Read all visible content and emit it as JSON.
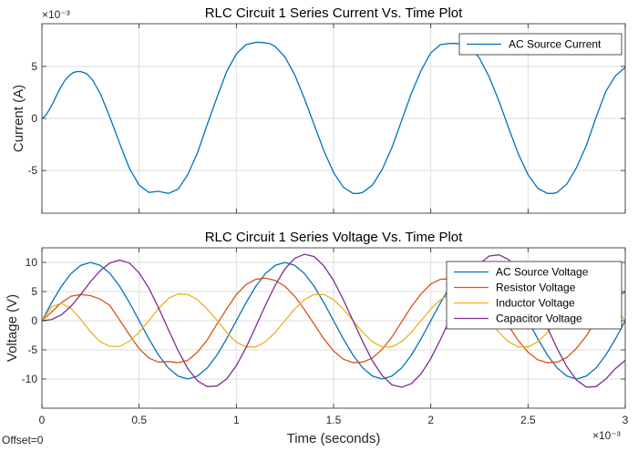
{
  "figure": {
    "offset_label": "Offset=0"
  },
  "chart_data": [
    {
      "type": "line",
      "title": "RLC Circuit 1 Series Current Vs. Time Plot",
      "xlabel": "",
      "ylabel": "Current (A)",
      "exponent_label": "×10⁻³",
      "xlim": [
        0,
        0.003
      ],
      "ylim": [
        -0.0091,
        0.0091
      ],
      "yticks": [
        -0.005,
        0,
        0.005
      ],
      "ytick_labels": [
        "-5",
        "0",
        "5"
      ],
      "xticks": [
        0,
        0.0005,
        0.001,
        0.0015,
        0.002,
        0.0025,
        0.003
      ],
      "grid": true,
      "legend": "top-right",
      "series": [
        {
          "name": "AC Source Current",
          "color": "#0072BD",
          "x": [
            0,
            2e-05,
            4e-05,
            6e-05,
            8e-05,
            0.0001,
            0.00012,
            0.00014,
            0.00016,
            0.00018,
            0.0002,
            0.00023,
            0.00026,
            0.0003,
            0.00035,
            0.0004,
            0.00045,
            0.0005,
            0.00055,
            0.0006,
            0.00065,
            0.0007,
            0.00075,
            0.0008,
            0.00085,
            0.0009,
            0.00095,
            0.001,
            0.00105,
            0.0011,
            0.00113,
            0.00117,
            0.0012,
            0.00125,
            0.0013,
            0.00135,
            0.0014,
            0.00145,
            0.0015,
            0.00155,
            0.0016,
            0.00163,
            0.00165,
            0.0017,
            0.00175,
            0.0018,
            0.00185,
            0.0019,
            0.00195,
            0.002,
            0.00205,
            0.0021,
            0.00213,
            0.00218,
            0.0022,
            0.00225,
            0.0023,
            0.00235,
            0.0024,
            0.00245,
            0.0025,
            0.00255,
            0.0026,
            0.00263,
            0.00265,
            0.0027,
            0.00275,
            0.0028,
            0.00285,
            0.0029,
            0.00295,
            0.003
          ],
          "values": [
            0,
            0.0003,
            0.0009,
            0.0016,
            0.0024,
            0.0031,
            0.0037,
            0.0041,
            0.0044,
            0.0045,
            0.0045,
            0.0043,
            0.0037,
            0.0024,
            0.0001,
            -0.0024,
            -0.0048,
            -0.0064,
            -0.0071,
            -0.007,
            -0.0072,
            -0.0068,
            -0.0054,
            -0.0033,
            -0.0006,
            0.002,
            0.0045,
            0.0062,
            0.0071,
            0.0073,
            0.0073,
            0.0072,
            0.0069,
            0.0059,
            0.0042,
            0.0019,
            -0.0006,
            -0.0031,
            -0.0052,
            -0.0066,
            -0.0072,
            -0.0072,
            -0.0071,
            -0.0064,
            -0.0049,
            -0.0028,
            -0.0002,
            0.0024,
            0.0046,
            0.0063,
            0.0071,
            0.0072,
            0.0072,
            0.0071,
            0.0069,
            0.0058,
            0.004,
            0.0017,
            -0.0009,
            -0.0034,
            -0.0054,
            -0.0067,
            -0.0072,
            -0.0072,
            -0.0071,
            -0.0063,
            -0.0047,
            -0.0026,
            0.0001,
            0.0026,
            0.0041,
            0.0049
          ]
        }
      ]
    },
    {
      "type": "line",
      "title": "RLC Circuit 1 Series Voltage Vs. Time Plot",
      "xlabel": "Time (seconds)",
      "ylabel": "Voltage (V)",
      "exponent_label": "×10⁻³",
      "xlim": [
        0,
        0.003
      ],
      "ylim": [
        -15,
        12.5
      ],
      "yticks": [
        -10,
        -5,
        0,
        5,
        10
      ],
      "ytick_labels": [
        "-10",
        "-5",
        "0",
        "5",
        "10"
      ],
      "xticks": [
        0,
        0.0005,
        0.001,
        0.0015,
        0.002,
        0.0025,
        0.003
      ],
      "xtick_labels": [
        "0",
        "0.5",
        "1",
        "1.5",
        "2",
        "2.5",
        "3"
      ],
      "grid": true,
      "legend": "top-right",
      "series": [
        {
          "name": "AC Source Voltage",
          "color": "#0072BD",
          "x": [
            0,
            5e-05,
            0.0001,
            0.00015,
            0.0002,
            0.00025,
            0.0003,
            0.00035,
            0.0004,
            0.00045,
            0.0005,
            0.00055,
            0.0006,
            0.00065,
            0.0007,
            0.00075,
            0.0008,
            0.00085,
            0.0009,
            0.00095,
            0.001,
            0.00105,
            0.0011,
            0.00115,
            0.0012,
            0.00125,
            0.0013,
            0.00135,
            0.0014,
            0.00145,
            0.0015,
            0.00155,
            0.0016,
            0.00165,
            0.0017,
            0.00175,
            0.0018,
            0.00185,
            0.0019,
            0.00195,
            0.002,
            0.00205,
            0.0021,
            0.00215,
            0.0022,
            0.00225,
            0.0023,
            0.00235,
            0.0024,
            0.00245,
            0.0025,
            0.00255,
            0.0026,
            0.00265,
            0.0027,
            0.00275,
            0.0028,
            0.00285,
            0.0029,
            0.00295,
            0.003
          ],
          "values": [
            0,
            3.1,
            5.9,
            8.1,
            9.5,
            10,
            9.5,
            8.1,
            5.9,
            3.1,
            0,
            -3.1,
            -5.9,
            -8.1,
            -9.5,
            -10,
            -9.5,
            -8.1,
            -5.9,
            -3.1,
            0,
            3.1,
            5.9,
            8.1,
            9.5,
            10,
            9.5,
            8.1,
            5.9,
            3.1,
            0,
            -3.1,
            -5.9,
            -8.1,
            -9.5,
            -10,
            -9.5,
            -8.1,
            -5.9,
            -3.1,
            0,
            3.1,
            5.9,
            8.1,
            9.5,
            10,
            9.5,
            8.1,
            5.9,
            3.1,
            0,
            -3.1,
            -5.9,
            -8.1,
            -9.5,
            -10,
            -9.5,
            -8.1,
            -5.9,
            -3.1,
            0
          ]
        },
        {
          "name": "Resistor Voltage",
          "color": "#D95319",
          "x": [
            0,
            5e-05,
            0.0001,
            0.00015,
            0.0002,
            0.00025,
            0.0003,
            0.00035,
            0.0004,
            0.00045,
            0.0005,
            0.00055,
            0.0006,
            0.00065,
            0.0007,
            0.00075,
            0.0008,
            0.00085,
            0.0009,
            0.00095,
            0.001,
            0.00105,
            0.0011,
            0.00115,
            0.0012,
            0.00125,
            0.0013,
            0.00135,
            0.0014,
            0.00145,
            0.0015,
            0.00155,
            0.0016,
            0.00165,
            0.0017,
            0.00175,
            0.0018,
            0.00185,
            0.0019,
            0.00195,
            0.002,
            0.00205,
            0.0021,
            0.00215,
            0.0022,
            0.00225,
            0.0023,
            0.00235,
            0.0024,
            0.00245,
            0.0025,
            0.00255,
            0.0026,
            0.00265,
            0.0027,
            0.00275,
            0.0028,
            0.00285,
            0.0029,
            0.00295,
            0.003
          ],
          "values": [
            0,
            1.5,
            3.1,
            4.2,
            4.5,
            4.3,
            3.7,
            2.6,
            0.1,
            -2.4,
            -4.8,
            -6.4,
            -7.1,
            -7.0,
            -7.2,
            -6.8,
            -5.4,
            -3.3,
            -0.6,
            2.0,
            4.5,
            6.2,
            7.1,
            7.3,
            6.9,
            5.9,
            4.2,
            1.9,
            -0.6,
            -3.1,
            -5.2,
            -6.6,
            -7.2,
            -7.1,
            -6.4,
            -4.9,
            -2.8,
            -0.2,
            2.4,
            4.6,
            6.3,
            7.1,
            7.2,
            7.1,
            6.9,
            5.8,
            4.0,
            1.7,
            -0.9,
            -3.4,
            -5.4,
            -6.7,
            -7.2,
            -7.1,
            -6.3,
            -4.7,
            -2.6,
            0.1,
            2.6,
            4.1,
            4.9
          ]
        },
        {
          "name": "Inductor Voltage",
          "color": "#EDB120",
          "x": [
            0,
            5e-05,
            0.0001,
            0.00015,
            0.0002,
            0.00025,
            0.0003,
            0.00035,
            0.0004,
            0.00045,
            0.0005,
            0.00055,
            0.0006,
            0.00065,
            0.0007,
            0.00075,
            0.0008,
            0.00085,
            0.0009,
            0.00095,
            0.001,
            0.00105,
            0.0011,
            0.00115,
            0.0012,
            0.00125,
            0.0013,
            0.00135,
            0.0014,
            0.00145,
            0.0015,
            0.00155,
            0.0016,
            0.00165,
            0.0017,
            0.00175,
            0.0018,
            0.00185,
            0.0019,
            0.00195,
            0.002,
            0.00205,
            0.0021,
            0.00215,
            0.0022,
            0.00225,
            0.0023,
            0.00235,
            0.0024,
            0.00245,
            0.0025,
            0.00255,
            0.0026,
            0.00265,
            0.0027,
            0.00275,
            0.0028,
            0.00285,
            0.0029,
            0.00295,
            0.003
          ],
          "values": [
            0,
            2.4,
            3.0,
            2.1,
            0.2,
            -1.9,
            -3.6,
            -4.4,
            -4.4,
            -3.5,
            -2.0,
            0.0,
            2.1,
            3.8,
            4.6,
            4.5,
            3.6,
            2.0,
            0.1,
            -2.0,
            -3.7,
            -4.5,
            -4.5,
            -3.6,
            -2.0,
            0.0,
            2.0,
            3.6,
            4.5,
            4.5,
            3.6,
            2.0,
            0.0,
            -2.0,
            -3.6,
            -4.5,
            -4.5,
            -3.6,
            -2.0,
            0.0,
            2.0,
            3.6,
            4.5,
            4.5,
            3.6,
            2.0,
            0.0,
            -2.0,
            -3.6,
            -4.5,
            -4.5,
            -3.6,
            -2.0,
            0.0,
            2.0,
            3.6,
            4.5,
            4.5,
            3.6,
            2.0,
            0.0
          ]
        },
        {
          "name": "Capacitor Voltage",
          "color": "#7E2F8E",
          "x": [
            0,
            5e-05,
            0.0001,
            0.00015,
            0.0002,
            0.00025,
            0.0003,
            0.00035,
            0.0004,
            0.00045,
            0.0005,
            0.00055,
            0.0006,
            0.00065,
            0.0007,
            0.00075,
            0.0008,
            0.00085,
            0.0009,
            0.00095,
            0.001,
            0.00105,
            0.0011,
            0.00115,
            0.0012,
            0.00125,
            0.0013,
            0.00135,
            0.0014,
            0.00145,
            0.0015,
            0.00155,
            0.0016,
            0.00165,
            0.0017,
            0.00175,
            0.0018,
            0.00185,
            0.0019,
            0.00195,
            0.002,
            0.00205,
            0.0021,
            0.00215,
            0.0022,
            0.00225,
            0.0023,
            0.00235,
            0.0024,
            0.00245,
            0.0025,
            0.00255,
            0.0026,
            0.00265,
            0.0027,
            0.00275,
            0.0028,
            0.00285,
            0.0029,
            0.00295,
            0.003
          ],
          "values": [
            0,
            0.2,
            1.0,
            2.5,
            4.5,
            6.7,
            8.6,
            9.9,
            10.4,
            9.9,
            8.2,
            5.6,
            2.2,
            -1.5,
            -5.1,
            -8.2,
            -10.3,
            -11.3,
            -11.2,
            -10.0,
            -7.7,
            -4.6,
            -1.0,
            2.7,
            6.1,
            8.9,
            10.7,
            11.4,
            11.0,
            9.4,
            6.9,
            3.6,
            0.0,
            -3.6,
            -6.9,
            -9.4,
            -11.0,
            -11.4,
            -10.8,
            -9.1,
            -6.5,
            -3.2,
            0.4,
            4.0,
            7.3,
            9.7,
            11.1,
            11.3,
            10.5,
            8.6,
            5.8,
            2.4,
            -1.2,
            -4.8,
            -7.9,
            -10.2,
            -11.4,
            -11.3,
            -10.0,
            -8.2,
            -6.8
          ]
        }
      ]
    }
  ]
}
